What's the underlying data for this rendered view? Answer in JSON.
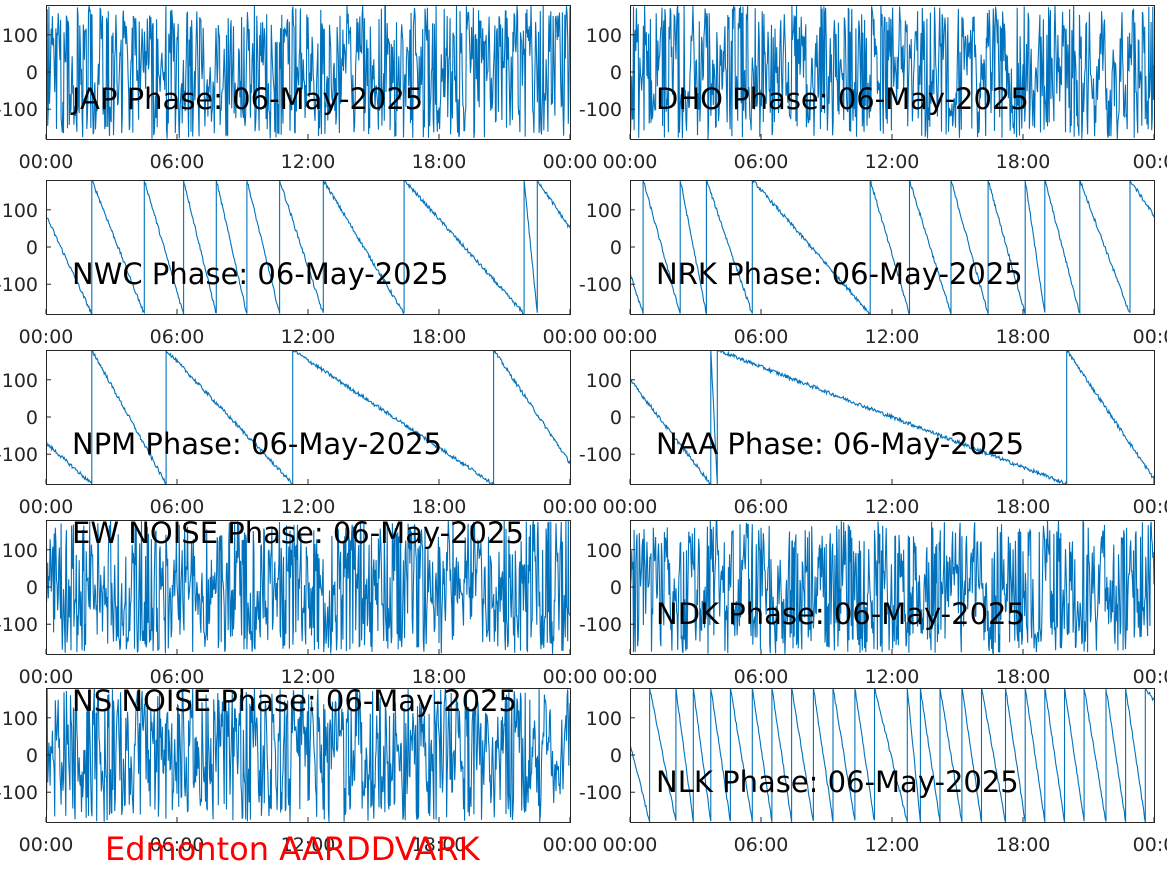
{
  "figure": {
    "site_label": "Edmonton AARDDVARK",
    "site_label_color": "#FF0000",
    "trace_color": "#0072BD"
  },
  "chart_data": [
    {
      "type": "line",
      "title": "JAP Phase: 06-May-2025",
      "x_ticks": [
        "00:00",
        "06:00",
        "12:00",
        "18:00",
        "00:00"
      ],
      "y_ticks": [
        "100",
        "0",
        "-100"
      ],
      "xlim_hours": [
        0,
        24
      ],
      "ylim": [
        -180,
        180
      ],
      "signal": "noise",
      "series": [
        {
          "approx_wrap_times_h": []
        }
      ]
    },
    {
      "type": "line",
      "title": "DHO Phase: 06-May-2025",
      "x_ticks": [
        "00:00",
        "06:00",
        "12:00",
        "18:00",
        "00:0"
      ],
      "y_ticks": [
        "100",
        "0",
        "-100"
      ],
      "xlim_hours": [
        0,
        24
      ],
      "ylim": [
        -180,
        180
      ],
      "signal": "noise",
      "series": [
        {
          "approx_wrap_times_h": []
        }
      ]
    },
    {
      "type": "line",
      "title": "NWC Phase: 06-May-2025",
      "x_ticks": [
        "00:00",
        "06:00",
        "12:00",
        "18:00",
        "00:00"
      ],
      "y_ticks": [
        "100",
        "0",
        "-100"
      ],
      "xlim_hours": [
        0,
        24
      ],
      "ylim": [
        -180,
        180
      ],
      "signal": "wrap",
      "series": [
        {
          "start_deg": 85,
          "approx_wrap_times_h": [
            2.1,
            4.5,
            6.3,
            7.8,
            9.2,
            10.7,
            12.7,
            16.4,
            21.9,
            22.5
          ]
        }
      ]
    },
    {
      "type": "line",
      "title": "NRK Phase: 06-May-2025",
      "x_ticks": [
        "00:00",
        "06:00",
        "12:00",
        "18:00",
        "00:0"
      ],
      "y_ticks": [
        "100",
        "0",
        "-100"
      ],
      "xlim_hours": [
        0,
        24
      ],
      "ylim": [
        -180,
        180
      ],
      "signal": "wrap",
      "series": [
        {
          "start_deg": -70,
          "approx_wrap_times_h": [
            0.6,
            2.3,
            3.5,
            5.6,
            11.0,
            12.8,
            14.7,
            16.4,
            18.1,
            19.0,
            20.6,
            22.9
          ]
        }
      ]
    },
    {
      "type": "line",
      "title": "NPM Phase: 06-May-2025",
      "x_ticks": [
        "00:00",
        "06:00",
        "12:00",
        "18:00",
        "00:00"
      ],
      "y_ticks": [
        "100",
        "0",
        "-100"
      ],
      "xlim_hours": [
        0,
        24
      ],
      "ylim": [
        -180,
        180
      ],
      "signal": "wrap",
      "series": [
        {
          "start_deg": -70,
          "approx_wrap_times_h": [
            2.1,
            5.5,
            11.3,
            20.5
          ]
        }
      ]
    },
    {
      "type": "line",
      "title": "NAA Phase: 06-May-2025",
      "x_ticks": [
        "00:00",
        "06:00",
        "12:00",
        "18:00",
        "00:0"
      ],
      "y_ticks": [
        "100",
        "0",
        "-100"
      ],
      "xlim_hours": [
        0,
        24
      ],
      "ylim": [
        -180,
        180
      ],
      "signal": "wrap",
      "series": [
        {
          "start_deg": 100,
          "approx_wrap_times_h": [
            3.7,
            4.0,
            20.0
          ]
        }
      ]
    },
    {
      "type": "line",
      "title": "EW NOISE Phase: 06-May-2025",
      "x_ticks": [
        "00:00",
        "06:00",
        "12:00",
        "18:00",
        "00:00"
      ],
      "y_ticks": [
        "100",
        "0",
        "-100"
      ],
      "xlim_hours": [
        0,
        24
      ],
      "ylim": [
        -180,
        180
      ],
      "signal": "noise",
      "series": [
        {
          "approx_wrap_times_h": []
        }
      ]
    },
    {
      "type": "line",
      "title": "NDK Phase: 06-May-2025",
      "x_ticks": [
        "00:00",
        "06:00",
        "12:00",
        "18:00",
        "00:0"
      ],
      "y_ticks": [
        "100",
        "0",
        "-100"
      ],
      "xlim_hours": [
        0,
        24
      ],
      "ylim": [
        -180,
        180
      ],
      "signal": "noise",
      "series": [
        {
          "approx_wrap_times_h": []
        }
      ]
    },
    {
      "type": "line",
      "title": "NS NOISE Phase: 06-May-2025",
      "x_ticks": [
        "00:00",
        "06:00",
        "12:00",
        "18:00",
        "00:00"
      ],
      "y_ticks": [
        "100",
        "0",
        "-100"
      ],
      "xlim_hours": [
        0,
        24
      ],
      "ylim": [
        -180,
        180
      ],
      "signal": "noise",
      "series": [
        {
          "approx_wrap_times_h": []
        }
      ]
    },
    {
      "type": "line",
      "title": "NLK Phase: 06-May-2025",
      "x_ticks": [
        "00:00",
        "06:00",
        "12:00",
        "18:00",
        "00:0"
      ],
      "y_ticks": [
        "100",
        "0",
        "-100"
      ],
      "xlim_hours": [
        0,
        24
      ],
      "ylim": [
        -180,
        180
      ],
      "signal": "wrap",
      "series": [
        {
          "start_deg": 30,
          "approx_wrap_times_h": [
            0.9,
            2.1,
            2.9,
            3.7,
            4.6,
            5.6,
            6.5,
            7.4,
            8.4,
            9.3,
            10.3,
            11.2,
            12.7,
            13.3,
            14.2,
            15.2,
            16.1,
            17.2,
            18.1,
            19.0,
            19.9,
            20.8,
            21.8,
            22.7,
            23.6
          ]
        }
      ]
    }
  ]
}
